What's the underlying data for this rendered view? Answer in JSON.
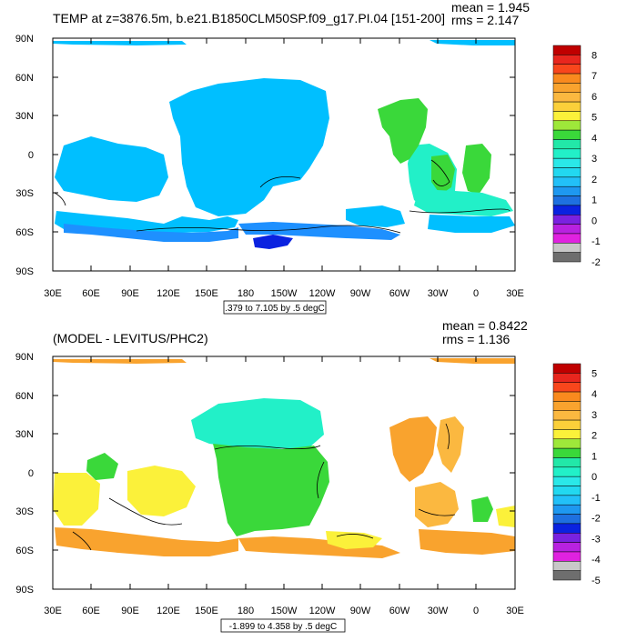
{
  "panels": [
    {
      "title": "TEMP at z=3876.5m, b.e21.B1850CLM50SP.f09_g17.PI.04 [151-200]",
      "mean": "mean = 1.945",
      "rms": "rms = 2.147",
      "contour_info": ".379 to 7.105 by .5 degC",
      "lat_labels": [
        "90N",
        "60N",
        "30N",
        "0",
        "30S",
        "60S",
        "90S"
      ],
      "lon_labels": [
        "30E",
        "60E",
        "90E",
        "120E",
        "150E",
        "180",
        "150W",
        "120W",
        "90W",
        "60W",
        "30W",
        "0",
        "30E"
      ],
      "colorbar": {
        "labels": [
          "8",
          "7",
          "6",
          "5",
          "4",
          "3",
          "2",
          "1",
          "0",
          "-1",
          "-2"
        ],
        "colors": [
          "#c00000",
          "#e8261e",
          "#f8461c",
          "#f98a1e",
          "#f9a32e",
          "#fbb840",
          "#fbd03a",
          "#fbf13a",
          "#9ee83a",
          "#3ad83a",
          "#22e8a8",
          "#22f0c8",
          "#2ae8e8",
          "#22d8f0",
          "#22c0f8",
          "#1e98f0",
          "#1e70e0",
          "#0a22e0",
          "#7a22e0",
          "#b822e0",
          "#e022e0",
          "#c8c8c8",
          "#6e6e6e"
        ]
      }
    },
    {
      "title": "(MODEL - LEVITUS/PHC2)",
      "mean": "mean = 0.8422",
      "rms": "rms = 1.136",
      "contour_info": "-1.899 to 4.358 by .5 degC",
      "lat_labels": [
        "90N",
        "60N",
        "30N",
        "0",
        "30S",
        "60S",
        "90S"
      ],
      "lon_labels": [
        "30E",
        "60E",
        "90E",
        "120E",
        "150E",
        "180",
        "150W",
        "120W",
        "90W",
        "60W",
        "30W",
        "0",
        "30E"
      ],
      "colorbar": {
        "labels": [
          "5",
          "4",
          "3",
          "2",
          "1",
          "0",
          "-1",
          "-2",
          "-3",
          "-4",
          "-5"
        ],
        "colors": [
          "#c00000",
          "#e8261e",
          "#f8461c",
          "#f98a1e",
          "#f9a32e",
          "#fbb840",
          "#fbd03a",
          "#fbf13a",
          "#9ee83a",
          "#3ad83a",
          "#22e8a8",
          "#22f0c8",
          "#2ae8e8",
          "#22d8f0",
          "#22c0f8",
          "#1e98f0",
          "#1e70e0",
          "#0a22e0",
          "#7a22e0",
          "#b822e0",
          "#e022e0",
          "#c8c8c8",
          "#6e6e6e"
        ]
      }
    }
  ]
}
